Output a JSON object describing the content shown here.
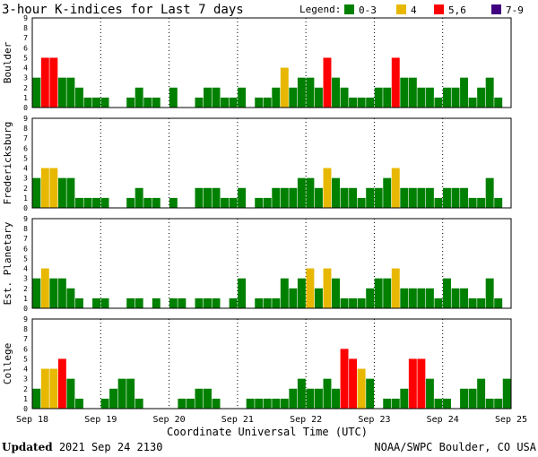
{
  "chart_data": {
    "type": "bar",
    "title": "3-hour K-indices for Last 7 days",
    "legend": {
      "label": "Legend:",
      "items": [
        {
          "label": "0-3",
          "color": "#008000"
        },
        {
          "label": "4",
          "color": "#e8b800"
        },
        {
          "label": "5,6",
          "color": "#ff0000"
        },
        {
          "label": "7-9",
          "color": "#400080"
        }
      ]
    },
    "xlabel": "Coordinate Universal Time (UTC)",
    "x_ticks": [
      "Sep 18",
      "Sep 19",
      "Sep 20",
      "Sep 21",
      "Sep 22",
      "Sep 23",
      "Sep 24",
      "Sep 25"
    ],
    "ylim": [
      0,
      9
    ],
    "y_ticks": [
      "0",
      "1",
      "2",
      "3",
      "4",
      "5",
      "6",
      "7",
      "8",
      "9"
    ],
    "panels": [
      {
        "name": "Boulder",
        "values": [
          3,
          5,
          5,
          3,
          3,
          2,
          1,
          1,
          1,
          0,
          0,
          1,
          2,
          1,
          1,
          0,
          2,
          0,
          0,
          1,
          2,
          2,
          1,
          1,
          2,
          0,
          1,
          1,
          2,
          4,
          2,
          3,
          3,
          2,
          5,
          3,
          2,
          1,
          1,
          1,
          2,
          2,
          5,
          3,
          3,
          2,
          2,
          1,
          2,
          2,
          3,
          1,
          2,
          3,
          1,
          0
        ]
      },
      {
        "name": "Fredericksburg",
        "values": [
          3,
          4,
          4,
          3,
          3,
          1,
          1,
          1,
          1,
          0,
          0,
          1,
          2,
          1,
          1,
          0,
          1,
          0,
          0,
          2,
          2,
          2,
          1,
          1,
          2,
          0,
          1,
          1,
          2,
          2,
          2,
          3,
          3,
          2,
          4,
          3,
          2,
          2,
          1,
          2,
          2,
          3,
          4,
          2,
          2,
          2,
          2,
          1,
          2,
          2,
          2,
          1,
          1,
          3,
          1,
          0
        ]
      },
      {
        "name": "Est. Planetary",
        "values": [
          3,
          4,
          3,
          3,
          2,
          1,
          0,
          1,
          1,
          0,
          0,
          1,
          1,
          0,
          1,
          0,
          1,
          1,
          0,
          1,
          1,
          1,
          0,
          1,
          3,
          0,
          1,
          1,
          1,
          3,
          2,
          3,
          4,
          2,
          4,
          3,
          1,
          1,
          1,
          2,
          3,
          3,
          4,
          2,
          2,
          2,
          2,
          1,
          3,
          2,
          2,
          1,
          1,
          3,
          1,
          0
        ]
      },
      {
        "name": "College",
        "values": [
          2,
          4,
          4,
          5,
          3,
          1,
          0,
          0,
          1,
          2,
          3,
          3,
          1,
          0,
          0,
          0,
          0,
          1,
          1,
          2,
          2,
          1,
          0,
          0,
          0,
          1,
          1,
          1,
          1,
          1,
          2,
          3,
          2,
          2,
          3,
          2,
          6,
          5,
          4,
          3,
          0,
          1,
          1,
          2,
          5,
          5,
          3,
          1,
          1,
          0,
          2,
          2,
          3,
          1,
          1,
          3,
          2,
          0
        ]
      }
    ]
  },
  "footer": {
    "updated_label": "Updated",
    "updated_value": "2021 Sep 24 2130",
    "credit": "NOAA/SWPC Boulder, CO USA"
  }
}
